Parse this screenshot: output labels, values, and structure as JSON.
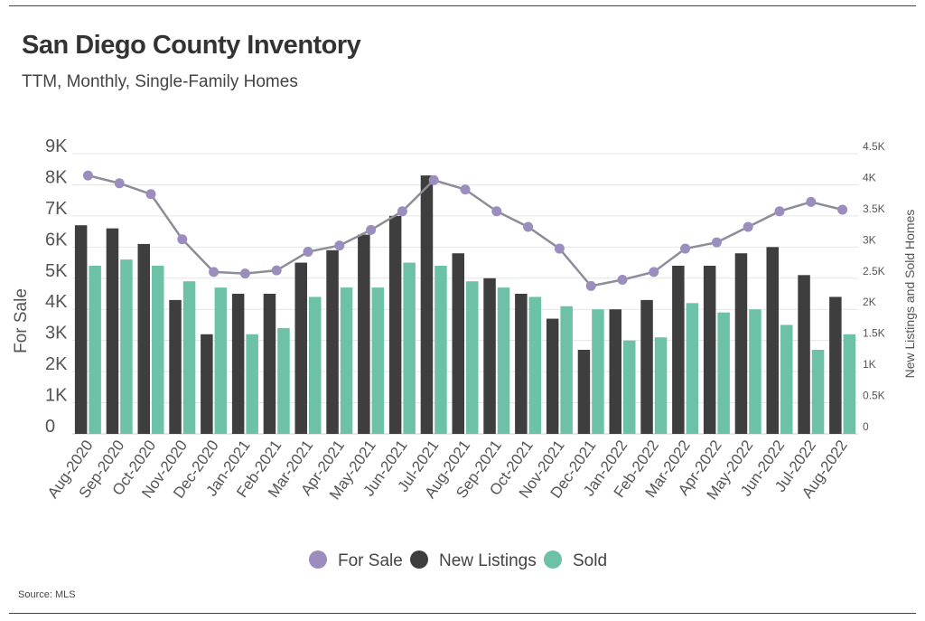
{
  "title": "San Diego County Inventory",
  "subtitle": "TTM, Monthly, Single-Family Homes",
  "source": "Source:  MLS",
  "colors": {
    "for_sale": "#9b8ebf",
    "for_sale_line": "#8d8d99",
    "new_listings": "#3e3e3e",
    "sold": "#6cc1a6"
  },
  "chart_data": {
    "type": "bar",
    "categories": [
      "Aug-2020",
      "Sep-2020",
      "Oct-2020",
      "Nov-2020",
      "Dec-2020",
      "Jan-2021",
      "Feb-2021",
      "Mar-2021",
      "Apr-2021",
      "May-2021",
      "Jun-2021",
      "Jul-2021",
      "Aug-2021",
      "Sep-2021",
      "Oct-2021",
      "Nov-2021",
      "Dec-2021",
      "Jan-2022",
      "Feb-2022",
      "Mar-2022",
      "Apr-2022",
      "May-2022",
      "Jun-2022",
      "Jul-2022",
      "Aug-2022"
    ],
    "series": [
      {
        "name": "For Sale",
        "type": "line",
        "axis": "left",
        "values": [
          8300,
          8050,
          7700,
          6250,
          5200,
          5150,
          5250,
          5850,
          6050,
          6550,
          7150,
          8150,
          7850,
          7150,
          6650,
          5950,
          4750,
          4950,
          5200,
          5950,
          6150,
          6650,
          7150,
          7450,
          7200
        ]
      },
      {
        "name": "New Listings",
        "type": "bar",
        "axis": "right",
        "values": [
          3350,
          3300,
          3050,
          2150,
          1600,
          2250,
          2250,
          2750,
          2950,
          3200,
          3500,
          4150,
          2900,
          2500,
          2250,
          1850,
          1350,
          2000,
          2150,
          2700,
          2700,
          2900,
          3000,
          2550,
          2200
        ]
      },
      {
        "name": "Sold",
        "type": "bar",
        "axis": "right",
        "values": [
          2700,
          2800,
          2700,
          2450,
          2350,
          1600,
          1700,
          2200,
          2350,
          2350,
          2750,
          2700,
          2450,
          2350,
          2200,
          2050,
          2000,
          1500,
          1550,
          2100,
          1950,
          2000,
          1750,
          1350,
          1600
        ]
      }
    ],
    "ylabel": "For Sale",
    "y2label": "New Listings and Sold Homes",
    "ylim": [
      0,
      9000
    ],
    "y2lim": [
      0,
      4500
    ],
    "yticks": [
      "0",
      "1K",
      "2K",
      "3K",
      "4K",
      "5K",
      "6K",
      "7K",
      "8K",
      "9K"
    ],
    "y2ticks": [
      "0",
      "0.5K",
      "1K",
      "1.5K",
      "2K",
      "2.5K",
      "3K",
      "3.5K",
      "4K",
      "4.5K"
    ],
    "legend": [
      "For Sale",
      "New Listings",
      "Sold"
    ],
    "legend_position": "bottom-center",
    "grid": true
  }
}
